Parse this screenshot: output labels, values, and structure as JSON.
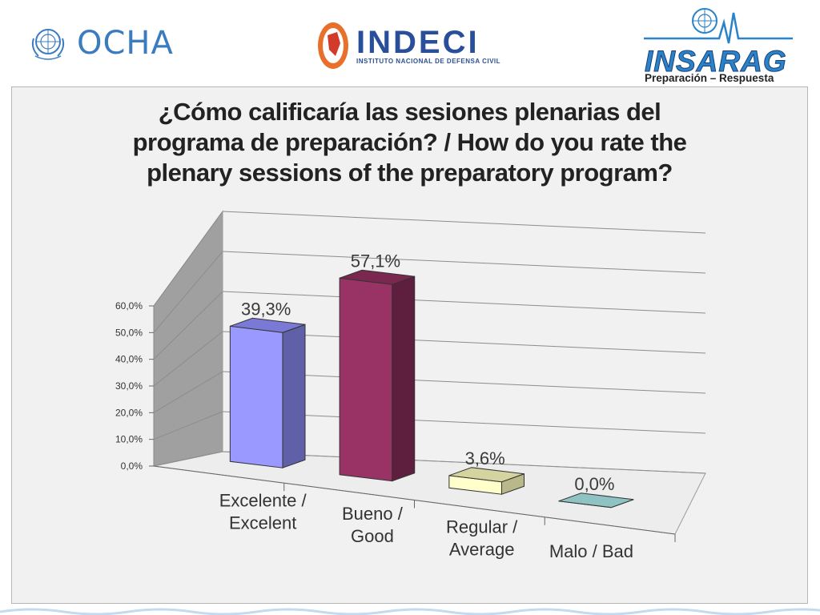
{
  "header": {
    "ocha_label": "OCHA",
    "indeci_label": "INDECI",
    "indeci_subtitle": "INSTITUTO NACIONAL DE DEFENSA CIVIL",
    "insarag_label": "INSARAG",
    "insarag_tagline": "Preparación – Respuesta"
  },
  "colors": {
    "panel_bg": "#f1f1f1",
    "un_blue": "#3b7cc1",
    "indeci_blue": "#2a4f9a",
    "indeci_orange": "#e8702a",
    "insarag_blue": "#2a83c8"
  },
  "chart_data": {
    "type": "bar",
    "title": "¿Cómo calificaría las sesiones plenarias del programa de preparación? / How do you rate the plenary sessions of the preparatory program?",
    "title_lines": [
      "¿Cómo calificaría las sesiones plenarias del",
      "programa de preparación? / How do you rate the",
      "plenary sessions of the preparatory program?"
    ],
    "categories": [
      [
        "Excelente /",
        "Excelent"
      ],
      [
        "Bueno /",
        "Good"
      ],
      [
        "Regular /",
        "Average"
      ],
      [
        "Malo / Bad"
      ]
    ],
    "values": [
      39.3,
      57.1,
      3.6,
      0.0
    ],
    "data_labels": [
      "39,3%",
      "57,1%",
      "3,6%",
      "0,0%"
    ],
    "bar_colors": [
      {
        "front": "#9999ff",
        "side": "#6060a8",
        "top": "#7a7ad6"
      },
      {
        "front": "#993366",
        "side": "#5e1f3f",
        "top": "#7a2850"
      },
      {
        "front": "#ffffcc",
        "side": "#b8b88a",
        "top": "#d4d4a0"
      },
      {
        "front": "#a9d5d5",
        "side": "#5f9999",
        "top": "#8fc2c2"
      }
    ],
    "yticks": [
      "0,0%",
      "10,0%",
      "20,0%",
      "30,0%",
      "40,0%",
      "50,0%",
      "60,0%"
    ],
    "ylim": [
      0,
      60
    ],
    "grid": true,
    "style": "3d-column"
  }
}
